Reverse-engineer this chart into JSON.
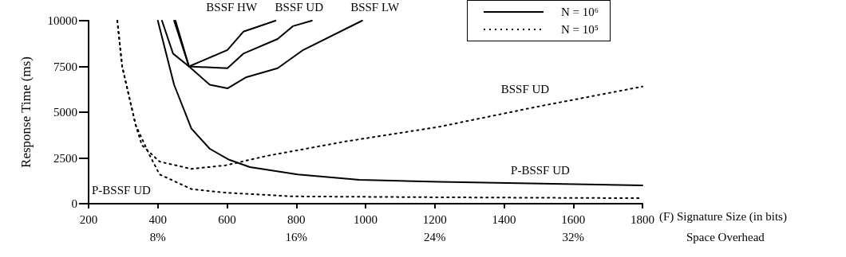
{
  "chart_data": {
    "type": "line",
    "xlabel": "(F) Signature Size (in bits)",
    "ylabel": "Response Time (ms)",
    "x2label": "Space Overhead",
    "xlim": [
      200,
      1800
    ],
    "xticks": [
      200,
      400,
      600,
      800,
      1000,
      1200,
      1400,
      1600,
      1800
    ],
    "x2lim": [
      4,
      36
    ],
    "x2ticks": [
      {
        "value": 8,
        "label": "8%"
      },
      {
        "value": 16,
        "label": "16%"
      },
      {
        "value": 24,
        "label": "24%"
      },
      {
        "value": 32,
        "label": "32%"
      }
    ],
    "ylim": [
      0,
      10000
    ],
    "yticks": [
      0,
      2500,
      5000,
      7500,
      10000
    ],
    "grid": false,
    "marker": "none",
    "series": [
      {
        "name": "BSSF UD",
        "color": "#000000",
        "line_style": "solid",
        "x": [
          451,
          490,
          601,
          647,
          746,
          790,
          845
        ],
        "values": [
          10000,
          7500,
          7400,
          8200,
          9000,
          9700,
          10000
        ]
      },
      {
        "name": "BSSF HW",
        "color": "#000000",
        "line_style": "solid",
        "x": [
          447,
          490,
          601,
          647,
          740
        ],
        "values": [
          10000,
          7500,
          8400,
          9400,
          10000
        ]
      },
      {
        "name": "BSSF LW",
        "color": "#000000",
        "line_style": "solid",
        "x": [
          412,
          428,
          444,
          490,
          550,
          601,
          654,
          746,
          820,
          990
        ],
        "values": [
          10000,
          9100,
          8200,
          7500,
          6500,
          6300,
          6900,
          7400,
          8400,
          10000
        ]
      },
      {
        "name": "P-BSSF UD",
        "color": "#000000",
        "line_style": "solid",
        "x": [
          400,
          447,
          497,
          550,
          606,
          666,
          804,
          982,
          1212,
          1800
        ],
        "values": [
          10000,
          6500,
          4100,
          3000,
          2400,
          2000,
          1600,
          1300,
          1200,
          1000
        ]
      },
      {
        "name": "BSSF UD",
        "color": "#000000",
        "line_style": "dotted",
        "x": [
          283,
          297,
          336,
          354,
          405,
          497,
          597,
          712,
          942,
          1212,
          1496,
          1800
        ],
        "values": [
          10000,
          7500,
          4300,
          3200,
          2300,
          1900,
          2100,
          2600,
          3400,
          4200,
          5300,
          6400
        ]
      },
      {
        "name": "P-BSSF UD",
        "color": "#000000",
        "line_style": "dotted",
        "x": [
          283,
          297,
          336,
          375,
          405,
          497,
          597,
          790,
          1212,
          1800
        ],
        "values": [
          10000,
          7500,
          4300,
          2700,
          1600,
          800,
          600,
          400,
          350,
          300
        ]
      }
    ],
    "annotations": [
      "N = 10⁶",
      "N = 10⁵"
    ]
  }
}
